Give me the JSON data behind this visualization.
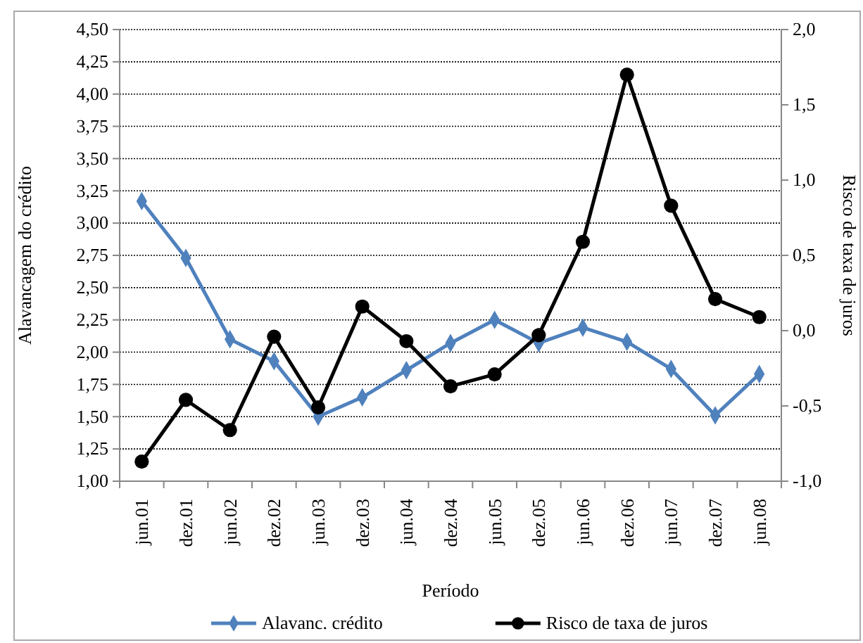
{
  "chart_data": {
    "type": "line",
    "xlabel": "Período",
    "ylabel": "Alavancagem do crédito",
    "y2label": "Risco de taxa de juros",
    "categories": [
      "jun.01",
      "dez.01",
      "jun.02",
      "dez.02",
      "jun.03",
      "dez.03",
      "jun.04",
      "dez.04",
      "jun.05",
      "dez.05",
      "jun.06",
      "dez.06",
      "jun.07",
      "dez.07",
      "jun.08"
    ],
    "series": [
      {
        "name": "Alavanc. crédito",
        "color": "#4f81bd",
        "marker": "diamond",
        "values": [
          3.17,
          2.73,
          2.1,
          1.93,
          1.5,
          1.65,
          1.86,
          2.07,
          2.25,
          2.07,
          2.19,
          2.08,
          1.87,
          1.51,
          1.83
        ]
      },
      {
        "name": "Risco de taxa de juros",
        "color": "#000000",
        "marker": "circle",
        "axis": "y2",
        "values": [
          -0.87,
          -0.46,
          -0.66,
          -0.04,
          -0.51,
          0.16,
          -0.07,
          -0.37,
          -0.29,
          -0.03,
          0.59,
          1.7,
          0.83,
          0.21,
          0.09
        ]
      }
    ],
    "ylim": [
      1,
      4.5
    ],
    "yticks": [
      {
        "value": 1,
        "label": "1,00"
      },
      {
        "value": 1.25,
        "label": "1,25"
      },
      {
        "value": 1.5,
        "label": "1,50"
      },
      {
        "value": 1.75,
        "label": "1,75"
      },
      {
        "value": 2,
        "label": "2,00"
      },
      {
        "value": 2.25,
        "label": "2,25"
      },
      {
        "value": 2.5,
        "label": "2,50"
      },
      {
        "value": 2.75,
        "label": "2,75"
      },
      {
        "value": 3,
        "label": "3,00"
      },
      {
        "value": 3.25,
        "label": "3,25"
      },
      {
        "value": 3.5,
        "label": "3,50"
      },
      {
        "value": 3.75,
        "label": "3,75"
      },
      {
        "value": 4,
        "label": "4,00"
      },
      {
        "value": 4.25,
        "label": "4,25"
      },
      {
        "value": 4.5,
        "label": "4,50"
      }
    ],
    "y2lim": [
      -1,
      2
    ],
    "y2ticks": [
      {
        "value": -1,
        "label": "-1,0"
      },
      {
        "value": -0.5,
        "label": "-0,5"
      },
      {
        "value": 0,
        "label": "0,0"
      },
      {
        "value": 0.5,
        "label": "0,5"
      },
      {
        "value": 1,
        "label": "1,0"
      },
      {
        "value": 1.5,
        "label": "1,5"
      },
      {
        "value": 2,
        "label": "2,0"
      }
    ],
    "grid": "y",
    "legend": "bottom",
    "line_style": "solid"
  }
}
